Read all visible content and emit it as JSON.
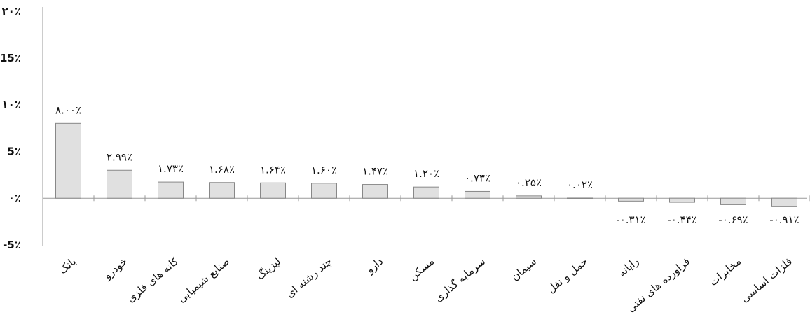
{
  "chart_data": {
    "type": "bar",
    "categories": [
      "بانک",
      "خودرو",
      "کانه های فلزی",
      "صنایع شیمیایی",
      "لیزینگ",
      "چند رشته ای",
      "دارو",
      "مسکن",
      "سرمایه گذاری",
      "سیمان",
      "حمل و نقل",
      "رایانه",
      "فراورده های نفتی",
      "مخابرات",
      "فلزات اساسی"
    ],
    "values": [
      8.0,
      2.99,
      1.73,
      1.68,
      1.64,
      1.6,
      1.47,
      1.2,
      0.73,
      0.25,
      0.02,
      -0.31,
      -0.44,
      -0.69,
      -0.91
    ],
    "data_labels": [
      "۸.۰۰٪",
      "۲.۹۹٪",
      "۱.۷۳٪",
      "۱.۶۸٪",
      "۱.۶۴٪",
      "۱.۶۰٪",
      "۱.۴۷٪",
      "۱.۲۰٪",
      "۰.۷۳٪",
      "۰.۲۵٪",
      "۰.۰۲٪",
      "-۰.۳۱٪",
      "-۰.۴۴٪",
      "-۰.۶۹٪",
      "-۰.۹۱٪"
    ],
    "y_ticks": [
      {
        "value": 20,
        "label": "۲۰٪"
      },
      {
        "value": 15,
        "label": "15٪"
      },
      {
        "value": 10,
        "label": "۱۰٪"
      },
      {
        "value": 5,
        "label": "5٪"
      },
      {
        "value": 0,
        "label": "۰٪"
      },
      {
        "value": -5,
        "label": "-5٪"
      }
    ],
    "ylim": [
      -5,
      20
    ],
    "grid": false,
    "colors": {
      "bar_fill": "#e0e0e0",
      "bar_stroke": "#888888",
      "axis": "#999999",
      "text": "#111111"
    }
  }
}
